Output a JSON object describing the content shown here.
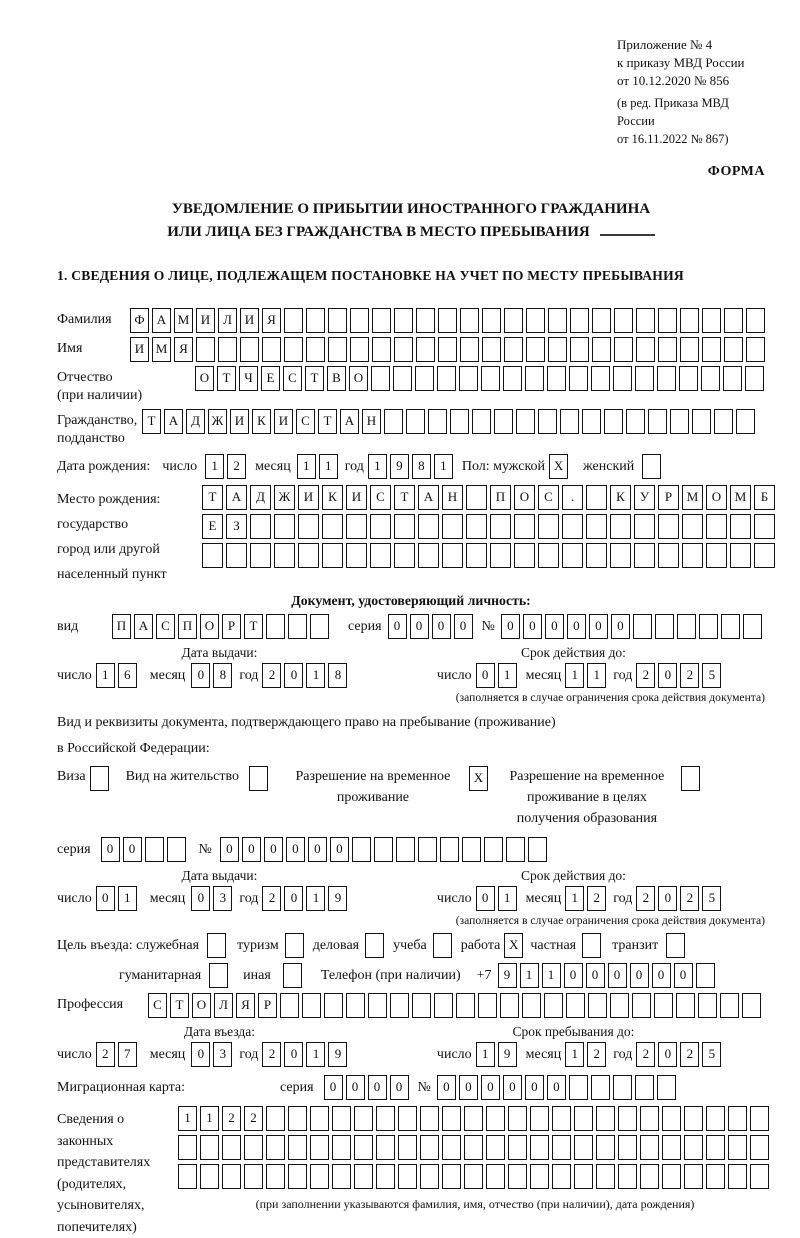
{
  "meta": {
    "appendix": [
      "Приложение № 4",
      "к приказу МВД России",
      "от 10.12.2020 № 856"
    ],
    "edition": [
      "(в ред. Приказа МВД России",
      "от 16.11.2022 № 867)"
    ],
    "form_label": "ФОРМА"
  },
  "title": {
    "line1": "УВЕДОМЛЕНИЕ О ПРИБЫТИИ ИНОСТРАННОГО ГРАЖДАНИНА",
    "line2": "ИЛИ ЛИЦА БЕЗ ГРАЖДАНСТВА В МЕСТО ПРЕБЫВАНИЯ"
  },
  "section1_title": "1. СВЕДЕНИЯ О ЛИЦЕ, ПОДЛЕЖАЩЕМ ПОСТАНОВКЕ НА УЧЕТ ПО МЕСТУ ПРЕБЫВАНИЯ",
  "labels": {
    "surname": "Фамилия",
    "name": "Имя",
    "patronymic": "Отчество",
    "patronymic_note": "(при наличии)",
    "citizenship1": "Гражданство,",
    "citizenship2": "подданство",
    "birthdate": "Дата рождения:",
    "day": "число",
    "month": "месяц",
    "year": "год",
    "sex": "Пол: мужской",
    "female": "женский",
    "birthplace1": "Место рождения:",
    "birthplace2": "государство",
    "birthplace3": "город или другой",
    "birthplace4": "населенный пункт",
    "iddoc_header": "Документ, удостоверяющий личность:",
    "doc_type": "вид",
    "series": "серия",
    "number": "№",
    "issue_date": "Дата выдачи:",
    "valid_until": "Срок действия до:",
    "valid_note": "(заполняется в случае ограничения срока действия документа)",
    "residence_doc1": "Вид и реквизиты документа, подтверждающего право на пребывание (проживание)",
    "residence_doc2": "в Российской Федерации:",
    "visa": "Виза",
    "residence_permit": "Вид на жительство",
    "temp_residence_l1": "Разрешение на временное",
    "temp_residence_l2": "проживание",
    "edu_residence_l1": "Разрешение на временное",
    "edu_residence_l2": "проживание в целях",
    "edu_residence_l3": "получения образования",
    "purpose": "Цель въезда: служебная",
    "purpose_tourism": "туризм",
    "purpose_business": "деловая",
    "purpose_study": "учеба",
    "purpose_work": "работа",
    "purpose_private": "частная",
    "purpose_transit": "транзит",
    "purpose_humanitarian": "гуманитарная",
    "purpose_other": "иная",
    "phone": "Телефон (при наличии)",
    "phone_prefix": "+7",
    "profession": "Профессия",
    "entry_date": "Дата въезда:",
    "stay_until": "Срок пребывания до:",
    "migration_card": "Миграционная карта:",
    "rep1": "Сведения о",
    "rep2": "законных",
    "rep3": "представителях",
    "rep4": "(родителях,",
    "rep5": "усыновителях,",
    "rep6": "попечителях)",
    "rep_note": "(при заполнении указываются фамилия, имя, отчество (при наличии), дата рождения)"
  },
  "cells": {
    "surname": {
      "count": 29,
      "values": [
        "Ф",
        "А",
        "М",
        "И",
        "Л",
        "И",
        "Я"
      ]
    },
    "name": {
      "count": 29,
      "values": [
        "И",
        "М",
        "Я"
      ]
    },
    "patronymic": {
      "count": 26,
      "values": [
        "О",
        "Т",
        "Ч",
        "Е",
        "С",
        "Т",
        "В",
        "О"
      ]
    },
    "citizenship": {
      "count": 28,
      "values": [
        "Т",
        "А",
        "Д",
        "Ж",
        "И",
        "К",
        "И",
        "С",
        "Т",
        "А",
        "Н"
      ]
    },
    "birth_day": {
      "count": 2,
      "values": [
        "1",
        "2"
      ]
    },
    "birth_month": {
      "count": 2,
      "values": [
        "1",
        "1"
      ]
    },
    "birth_year": {
      "count": 4,
      "values": [
        "1",
        "9",
        "8",
        "1"
      ]
    },
    "sex_male": {
      "count": 1,
      "values": [
        "X"
      ]
    },
    "sex_female": {
      "count": 1,
      "values": []
    },
    "birthplace1": {
      "count": 24,
      "values": [
        "Т",
        "А",
        "Д",
        "Ж",
        "И",
        "К",
        "И",
        "С",
        "Т",
        "А",
        "Н",
        "",
        "П",
        "О",
        "С",
        ".",
        "",
        "К",
        "У",
        "Р",
        "М",
        "О",
        "М",
        "Б"
      ]
    },
    "birthplace2": {
      "count": 24,
      "values": [
        "Е",
        "З"
      ]
    },
    "birthplace3": {
      "count": 24,
      "values": []
    },
    "doc_type": {
      "count": 10,
      "values": [
        "П",
        "А",
        "С",
        "П",
        "О",
        "Р",
        "Т"
      ]
    },
    "doc_series": {
      "count": 4,
      "values": [
        "0",
        "0",
        "0",
        "0"
      ]
    },
    "doc_number": {
      "count": 12,
      "values": [
        "0",
        "0",
        "0",
        "0",
        "0",
        "0"
      ]
    },
    "doc_issue_day": {
      "count": 2,
      "values": [
        "1",
        "6"
      ]
    },
    "doc_issue_month": {
      "count": 2,
      "values": [
        "0",
        "8"
      ]
    },
    "doc_issue_year": {
      "count": 4,
      "values": [
        "2",
        "0",
        "1",
        "8"
      ]
    },
    "doc_valid_day": {
      "count": 2,
      "values": [
        "0",
        "1"
      ]
    },
    "doc_valid_month": {
      "count": 2,
      "values": [
        "1",
        "1"
      ]
    },
    "doc_valid_year": {
      "count": 4,
      "values": [
        "2",
        "0",
        "2",
        "5"
      ]
    },
    "visa_box": {
      "count": 1,
      "values": []
    },
    "residence_permit_box": {
      "count": 1,
      "values": []
    },
    "temp_residence_box": {
      "count": 1,
      "values": [
        "X"
      ]
    },
    "edu_residence_box": {
      "count": 1,
      "values": []
    },
    "res_series": {
      "count": 4,
      "values": [
        "0",
        "0"
      ]
    },
    "res_number": {
      "count": 15,
      "values": [
        "0",
        "0",
        "0",
        "0",
        "0",
        "0"
      ]
    },
    "res_issue_day": {
      "count": 2,
      "values": [
        "0",
        "1"
      ]
    },
    "res_issue_month": {
      "count": 2,
      "values": [
        "0",
        "3"
      ]
    },
    "res_issue_year": {
      "count": 4,
      "values": [
        "2",
        "0",
        "1",
        "9"
      ]
    },
    "res_valid_day": {
      "count": 2,
      "values": [
        "0",
        "1"
      ]
    },
    "res_valid_month": {
      "count": 2,
      "values": [
        "1",
        "2"
      ]
    },
    "res_valid_year": {
      "count": 4,
      "values": [
        "2",
        "0",
        "2",
        "5"
      ]
    },
    "purpose_business_box": {
      "count": 1,
      "values": []
    },
    "purpose_tourism_box": {
      "count": 1,
      "values": []
    },
    "purpose_delovaya_box": {
      "count": 1,
      "values": []
    },
    "purpose_study_box": {
      "count": 1,
      "values": []
    },
    "purpose_work_box": {
      "count": 1,
      "values": [
        "X"
      ]
    },
    "purpose_private_box": {
      "count": 1,
      "values": []
    },
    "purpose_transit_box": {
      "count": 1,
      "values": []
    },
    "purpose_humanitarian_box": {
      "count": 1,
      "values": []
    },
    "purpose_other_box": {
      "count": 1,
      "values": []
    },
    "phone": {
      "count": 10,
      "values": [
        "9",
        "1",
        "1",
        "0",
        "0",
        "0",
        "0",
        "0",
        "0"
      ]
    },
    "profession": {
      "count": 28,
      "values": [
        "С",
        "Т",
        "О",
        "Л",
        "Я",
        "Р"
      ]
    },
    "entry_day": {
      "count": 2,
      "values": [
        "2",
        "7"
      ]
    },
    "entry_month": {
      "count": 2,
      "values": [
        "0",
        "3"
      ]
    },
    "entry_year": {
      "count": 4,
      "values": [
        "2",
        "0",
        "1",
        "9"
      ]
    },
    "stay_day": {
      "count": 2,
      "values": [
        "1",
        "9"
      ]
    },
    "stay_month": {
      "count": 2,
      "values": [
        "1",
        "2"
      ]
    },
    "stay_year": {
      "count": 4,
      "values": [
        "2",
        "0",
        "2",
        "5"
      ]
    },
    "mig_series": {
      "count": 4,
      "values": [
        "0",
        "0",
        "0",
        "0"
      ]
    },
    "mig_number": {
      "count": 11,
      "values": [
        "0",
        "0",
        "0",
        "0",
        "0",
        "0"
      ]
    },
    "rep_row1": {
      "count": 27,
      "values": [
        "1",
        "1",
        "2",
        "2"
      ]
    },
    "rep_row2": {
      "count": 27,
      "values": []
    },
    "rep_row3": {
      "count": 27,
      "values": []
    }
  }
}
